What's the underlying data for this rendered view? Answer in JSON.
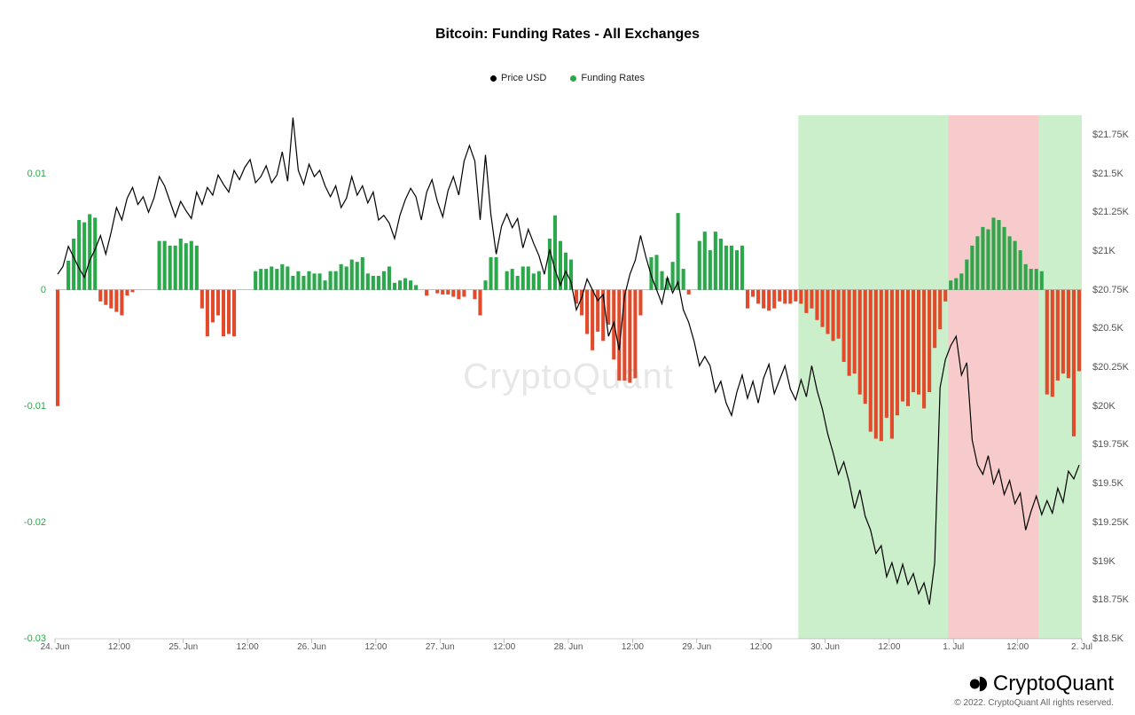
{
  "title": "Bitcoin: Funding Rates - All Exchanges",
  "legend": [
    {
      "label": "Price USD",
      "color": "#000000"
    },
    {
      "label": "Funding Rates",
      "color": "#2aa84a"
    }
  ],
  "watermark": "CryptoQuant",
  "brand": "CryptoQuant",
  "copyright": "© 2022. CryptoQuant All rights reserved.",
  "colors": {
    "bar_positive": "#2aa84a",
    "bar_negative": "#e14b2b",
    "line": "#000000",
    "grid": "#dddddd",
    "band_green": "rgba(160, 224, 160, 0.55)",
    "band_red": "rgba(240, 160, 160, 0.55)",
    "axis_left_label": "#2aa84a",
    "axis_right_label": "#555555",
    "background": "#ffffff"
  },
  "y_axis_left": {
    "min": -0.03,
    "max": 0.015,
    "ticks": [
      0.01,
      0,
      -0.01,
      -0.02,
      -0.03
    ]
  },
  "y_axis_right": {
    "min": 18500,
    "max": 21875,
    "ticks": [
      {
        "v": 21750,
        "label": "$21.75K"
      },
      {
        "v": 21500,
        "label": "$21.5K"
      },
      {
        "v": 21250,
        "label": "$21.25K"
      },
      {
        "v": 21000,
        "label": "$21K"
      },
      {
        "v": 20750,
        "label": "$20.75K"
      },
      {
        "v": 20500,
        "label": "$20.5K"
      },
      {
        "v": 20250,
        "label": "$20.25K"
      },
      {
        "v": 20000,
        "label": "$20K"
      },
      {
        "v": 19750,
        "label": "$19.75K"
      },
      {
        "v": 19500,
        "label": "$19.5K"
      },
      {
        "v": 19250,
        "label": "$19.25K"
      },
      {
        "v": 19000,
        "label": "$19K"
      },
      {
        "v": 18750,
        "label": "$18.75K"
      },
      {
        "v": 18500,
        "label": "$18.5K"
      }
    ]
  },
  "x_axis": {
    "min": 0,
    "max": 192,
    "ticks": [
      {
        "v": 0,
        "label": "24. Jun"
      },
      {
        "v": 12,
        "label": "12:00"
      },
      {
        "v": 24,
        "label": "25. Jun"
      },
      {
        "v": 36,
        "label": "12:00"
      },
      {
        "v": 48,
        "label": "26. Jun"
      },
      {
        "v": 60,
        "label": "12:00"
      },
      {
        "v": 72,
        "label": "27. Jun"
      },
      {
        "v": 84,
        "label": "12:00"
      },
      {
        "v": 96,
        "label": "28. Jun"
      },
      {
        "v": 108,
        "label": "12:00"
      },
      {
        "v": 120,
        "label": "29. Jun"
      },
      {
        "v": 132,
        "label": "12:00"
      },
      {
        "v": 144,
        "label": "30. Jun"
      },
      {
        "v": 156,
        "label": "12:00"
      },
      {
        "v": 168,
        "label": "1. Jul"
      },
      {
        "v": 180,
        "label": "12:00"
      },
      {
        "v": 192,
        "label": "2. Jul"
      }
    ]
  },
  "bands": [
    {
      "from": 139,
      "to": 167,
      "color": "band_green"
    },
    {
      "from": 167,
      "to": 184,
      "color": "band_red"
    },
    {
      "from": 184,
      "to": 192,
      "color": "band_green"
    }
  ],
  "funding_rates": [
    -0.01,
    0.0,
    0.0025,
    0.0044,
    0.006,
    0.0058,
    0.0065,
    0.0062,
    -0.001,
    -0.0013,
    -0.0016,
    -0.0019,
    -0.0022,
    -0.0005,
    -0.0002,
    0.0,
    0.0,
    0.0,
    0.0,
    0.0042,
    0.0042,
    0.0038,
    0.0038,
    0.0044,
    0.004,
    0.0042,
    0.0038,
    -0.0016,
    -0.004,
    -0.0028,
    -0.0022,
    -0.004,
    -0.0038,
    -0.004,
    0.0,
    0.0,
    0.0,
    0.0016,
    0.0018,
    0.0018,
    0.002,
    0.0018,
    0.0022,
    0.002,
    0.0012,
    0.0016,
    0.0012,
    0.0016,
    0.0014,
    0.0014,
    0.0008,
    0.0016,
    0.0016,
    0.0022,
    0.002,
    0.0026,
    0.0024,
    0.0028,
    0.0014,
    0.0012,
    0.0012,
    0.0016,
    0.002,
    0.0006,
    0.0008,
    0.001,
    0.0008,
    0.0004,
    0.0,
    -0.0005,
    0.0,
    -0.0003,
    -0.0004,
    -0.0004,
    -0.0006,
    -0.0008,
    -0.0006,
    0.0,
    -0.0008,
    -0.0022,
    0.0008,
    0.0028,
    0.0028,
    0.0,
    0.0016,
    0.0018,
    0.0012,
    0.002,
    0.002,
    0.0014,
    0.0016,
    0.0,
    0.0044,
    0.0064,
    0.0042,
    0.0032,
    0.0026,
    -0.0012,
    -0.0022,
    -0.0038,
    -0.0052,
    -0.0036,
    -0.0044,
    -0.003,
    -0.006,
    -0.0078,
    -0.0078,
    -0.008,
    -0.0076,
    -0.0022,
    0.0,
    0.0028,
    0.003,
    0.0016,
    0.001,
    0.0024,
    0.0066,
    0.0018,
    -0.0004,
    0.0,
    0.0042,
    0.005,
    0.0034,
    0.005,
    0.0044,
    0.0038,
    0.0038,
    0.0034,
    0.0038,
    -0.0016,
    -0.0006,
    -0.0012,
    -0.0016,
    -0.0018,
    -0.0016,
    -0.001,
    -0.0012,
    -0.0012,
    -0.001,
    -0.0012,
    -0.002,
    -0.0016,
    -0.0026,
    -0.0032,
    -0.0038,
    -0.0044,
    -0.0042,
    -0.0062,
    -0.0074,
    -0.0072,
    -0.009,
    -0.0098,
    -0.0122,
    -0.0128,
    -0.013,
    -0.011,
    -0.0128,
    -0.0108,
    -0.0096,
    -0.01,
    -0.0088,
    -0.009,
    -0.0102,
    -0.0088,
    -0.005,
    -0.0034,
    -0.001,
    0.0008,
    0.001,
    0.0014,
    0.0026,
    0.0038,
    0.0046,
    0.0054,
    0.0052,
    0.0062,
    0.006,
    0.0054,
    0.0046,
    0.0042,
    0.0034,
    0.0022,
    0.0018,
    0.0018,
    0.0016,
    -0.009,
    -0.0092,
    -0.0078,
    -0.0072,
    -0.0076,
    -0.0126,
    -0.007
  ],
  "price": [
    20850,
    20900,
    21030,
    20960,
    20890,
    20830,
    20940,
    21010,
    21100,
    20980,
    21120,
    21280,
    21200,
    21340,
    21410,
    21300,
    21350,
    21250,
    21340,
    21480,
    21420,
    21320,
    21220,
    21320,
    21260,
    21210,
    21380,
    21300,
    21410,
    21360,
    21490,
    21430,
    21380,
    21520,
    21460,
    21540,
    21590,
    21440,
    21480,
    21550,
    21440,
    21490,
    21640,
    21450,
    21860,
    21520,
    21430,
    21560,
    21480,
    21520,
    21420,
    21350,
    21420,
    21280,
    21340,
    21480,
    21360,
    21420,
    21310,
    21380,
    21200,
    21230,
    21180,
    21080,
    21230,
    21330,
    21405,
    21350,
    21200,
    21380,
    21460,
    21320,
    21220,
    21390,
    21480,
    21360,
    21580,
    21680,
    21580,
    21200,
    21620,
    21240,
    20980,
    21160,
    21240,
    21150,
    21210,
    21020,
    21140,
    21050,
    20970,
    20850,
    21010,
    20880,
    20780,
    20870,
    20800,
    20620,
    20700,
    20820,
    20750,
    20680,
    20720,
    20450,
    20540,
    20360,
    20710,
    20850,
    20940,
    21100,
    20960,
    20840,
    20750,
    20660,
    20830,
    20730,
    20800,
    20620,
    20540,
    20420,
    20260,
    20320,
    20260,
    20090,
    20160,
    20020,
    19940,
    20090,
    20200,
    20050,
    20160,
    20020,
    20180,
    20270,
    20080,
    20170,
    20260,
    20110,
    20040,
    20170,
    20060,
    20260,
    20100,
    19980,
    19820,
    19700,
    19560,
    19640,
    19510,
    19340,
    19460,
    19290,
    19200,
    19050,
    19100,
    18900,
    18990,
    18860,
    18980,
    18850,
    18920,
    18790,
    18860,
    18720,
    18990,
    20120,
    20300,
    20390,
    20450,
    20200,
    20280,
    19780,
    19620,
    19560,
    19680,
    19500,
    19590,
    19430,
    19520,
    19370,
    19440,
    19200,
    19320,
    19420,
    19300,
    19390,
    19310,
    19470,
    19380,
    19580,
    19530,
    19620
  ],
  "style": {
    "bar_width_ratio": 0.68,
    "line_width": 1.2,
    "watermark_fontsize": 40,
    "title_fontsize": 16,
    "axis_fontsize": 11
  }
}
